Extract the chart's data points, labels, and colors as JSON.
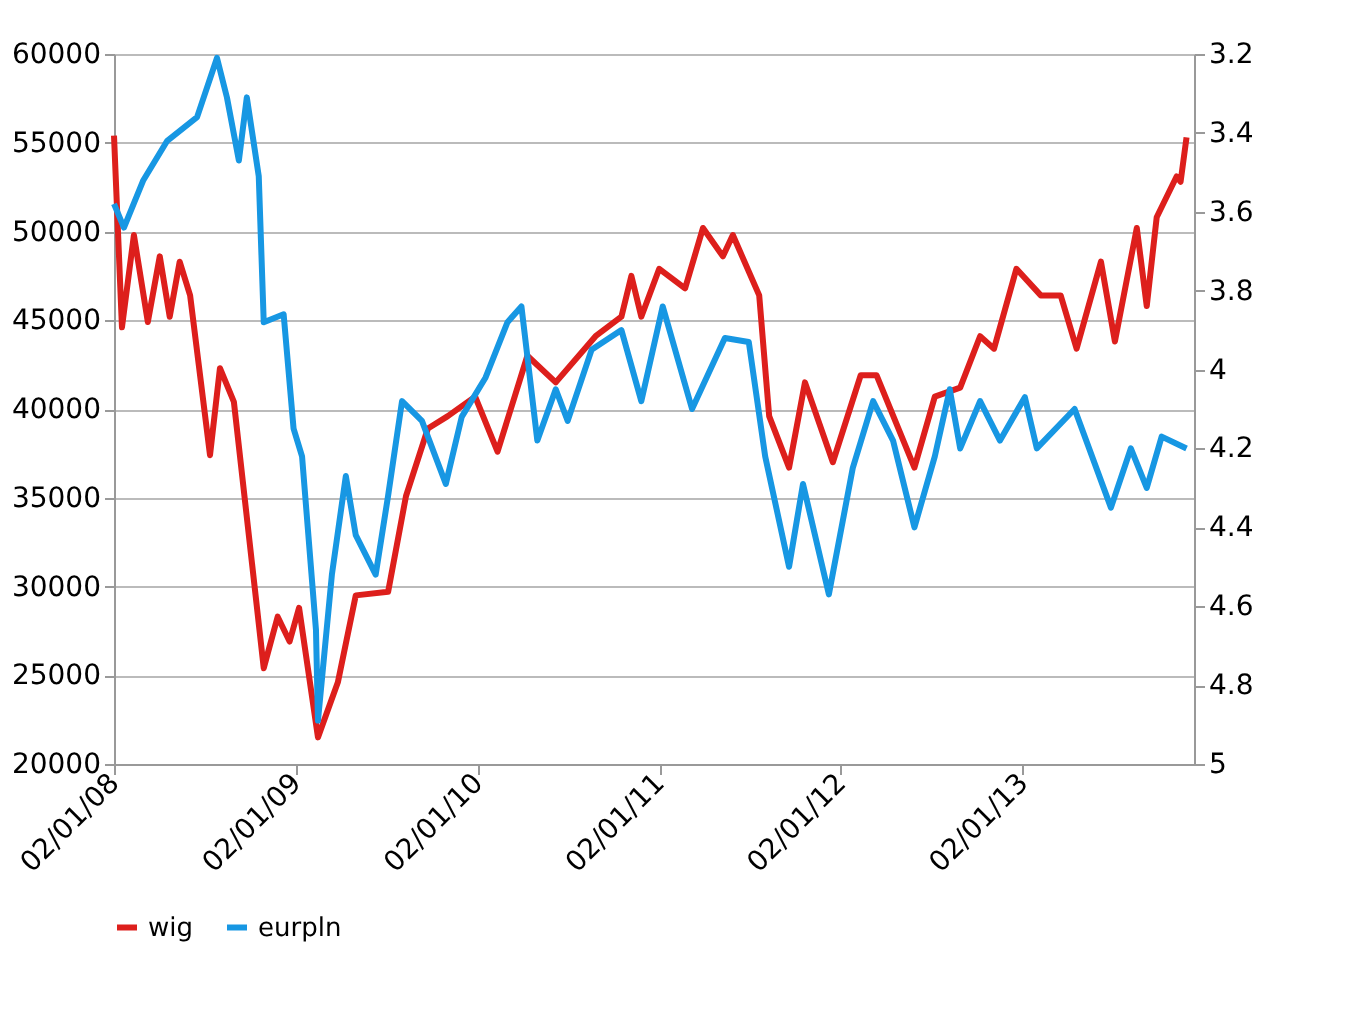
{
  "chart_data": {
    "type": "line",
    "xlim": [
      "2008-01-02",
      "2013-12-12"
    ],
    "xticks": [
      {
        "value": "2008-01-02",
        "label": "02/01/08"
      },
      {
        "value": "2009-01-02",
        "label": "02/01/09"
      },
      {
        "value": "2010-01-02",
        "label": "02/01/10"
      },
      {
        "value": "2011-01-02",
        "label": "02/01/11"
      },
      {
        "value": "2012-01-02",
        "label": "02/01/12"
      },
      {
        "value": "2013-01-02",
        "label": "02/01/13"
      }
    ],
    "ylim": [
      20000,
      60000
    ],
    "yticks": [
      20000,
      25000,
      30000,
      35000,
      40000,
      45000,
      50000,
      55000,
      60000
    ],
    "y2lim": [
      5,
      3.2
    ],
    "y2ticks": [
      3.2,
      3.4,
      3.6,
      3.8,
      4,
      4.2,
      4.4,
      4.6,
      4.8,
      5
    ],
    "grid": "y",
    "legend": "bottom",
    "marker": "none",
    "line_style": "solid",
    "series": [
      {
        "name": "wig",
        "color": "#dd1f1c",
        "x": [
          "2008-01-02",
          "2008-01-18",
          "2008-02-11",
          "2008-03-10",
          "2008-04-03",
          "2008-04-23",
          "2008-05-13",
          "2008-06-03",
          "2008-07-13",
          "2008-08-02",
          "2008-08-30",
          "2008-10-29",
          "2008-11-26",
          "2008-12-20",
          "2009-01-08",
          "2009-02-15",
          "2009-03-27",
          "2009-05-02",
          "2009-07-06",
          "2009-08-11",
          "2009-09-24",
          "2009-11-03",
          "2009-12-28",
          "2010-02-11",
          "2010-04-12",
          "2010-06-08",
          "2010-08-27",
          "2010-10-18",
          "2010-11-07",
          "2010-11-27",
          "2011-01-02",
          "2011-02-23",
          "2011-03-31",
          "2011-05-10",
          "2011-05-30",
          "2011-07-22",
          "2011-08-11",
          "2011-09-20",
          "2011-10-22",
          "2011-12-17",
          "2012-02-11",
          "2012-03-14",
          "2012-05-29",
          "2012-07-09",
          "2012-08-29",
          "2012-10-08",
          "2012-11-05",
          "2012-12-20",
          "2013-02-07",
          "2013-03-19",
          "2013-04-20",
          "2013-06-08",
          "2013-07-06",
          "2013-08-19",
          "2013-09-08",
          "2013-09-28",
          "2013-11-07",
          "2013-11-15",
          "2013-11-27"
        ],
        "values": [
          55400,
          44600,
          49800,
          44900,
          48600,
          45200,
          48300,
          46400,
          37400,
          42300,
          40400,
          25400,
          28300,
          26900,
          28800,
          21500,
          24600,
          29500,
          29700,
          35100,
          38900,
          39600,
          40700,
          37600,
          43000,
          41500,
          44100,
          45200,
          47500,
          45200,
          47900,
          46800,
          50200,
          48600,
          49800,
          46400,
          39600,
          36700,
          41500,
          37000,
          41900,
          41900,
          36700,
          40700,
          41200,
          44100,
          43400,
          47900,
          46400,
          46400,
          43400,
          48300,
          43800,
          50200,
          45800,
          50800,
          53100,
          52800,
          55300
        ]
      },
      {
        "name": "eurpln",
        "color": "#1797e3",
        "axis": "y2",
        "x": [
          "2008-01-02",
          "2008-01-22",
          "2008-03-01",
          "2008-04-18",
          "2008-06-17",
          "2008-07-27",
          "2008-08-16",
          "2008-09-09",
          "2008-09-25",
          "2008-10-19",
          "2008-10-29",
          "2008-12-08",
          "2008-12-28",
          "2009-01-14",
          "2009-02-11",
          "2009-02-15",
          "2009-03-15",
          "2009-04-12",
          "2009-05-02",
          "2009-06-11",
          "2009-07-06",
          "2009-08-03",
          "2009-09-12",
          "2009-10-30",
          "2009-12-01",
          "2010-01-18",
          "2010-03-03",
          "2010-03-31",
          "2010-05-02",
          "2010-06-08",
          "2010-07-02",
          "2010-08-19",
          "2010-10-18",
          "2010-11-27",
          "2011-01-09",
          "2011-03-09",
          "2011-05-14",
          "2011-07-01",
          "2011-08-03",
          "2011-09-20",
          "2011-10-18",
          "2011-12-09",
          "2012-01-26",
          "2012-03-07",
          "2012-04-16",
          "2012-05-29",
          "2012-07-09",
          "2012-08-08",
          "2012-08-29",
          "2012-10-08",
          "2012-11-17",
          "2013-01-06",
          "2013-01-30",
          "2013-04-16",
          "2013-06-28",
          "2013-08-07",
          "2013-09-08",
          "2013-10-08",
          "2013-11-27"
        ],
        "values": [
          3.58,
          3.64,
          3.52,
          3.42,
          3.36,
          3.21,
          3.31,
          3.47,
          3.31,
          3.51,
          3.88,
          3.86,
          4.15,
          4.22,
          4.66,
          4.89,
          4.52,
          4.27,
          4.42,
          4.52,
          4.32,
          4.08,
          4.13,
          4.29,
          4.12,
          4.02,
          3.88,
          3.84,
          4.18,
          4.05,
          4.13,
          3.95,
          3.9,
          4.08,
          3.84,
          4.1,
          3.92,
          3.93,
          4.22,
          4.5,
          4.29,
          4.57,
          4.25,
          4.08,
          4.18,
          4.4,
          4.22,
          4.05,
          4.2,
          4.08,
          4.18,
          4.07,
          4.2,
          4.1,
          4.35,
          4.2,
          4.3,
          4.17,
          4.2
        ]
      }
    ]
  }
}
